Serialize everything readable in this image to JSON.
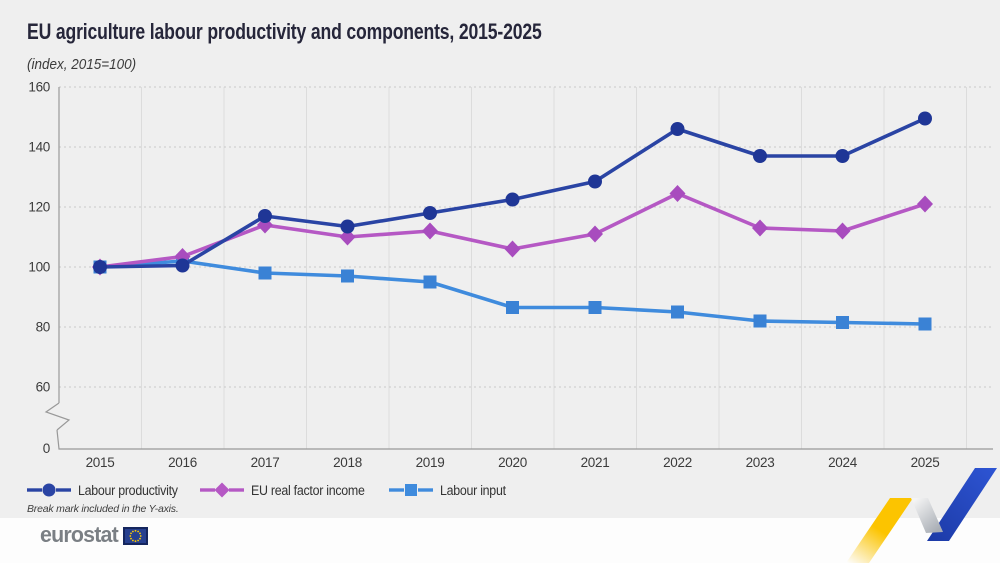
{
  "header": {
    "title": "EU agriculture labour productivity and components, 2015-2025",
    "subtitle": "(index, 2015=100)"
  },
  "chart_data": {
    "type": "line",
    "title": "EU agriculture labour productivity and components, 2015-2025",
    "subtitle": "(index, 2015=100)",
    "x": [
      "2015",
      "2016",
      "2017",
      "2018",
      "2019",
      "2020",
      "2021",
      "2022",
      "2023",
      "2024",
      "2025"
    ],
    "y_ticks": [
      160,
      140,
      120,
      100,
      80,
      60,
      0
    ],
    "y_axis_break": true,
    "grid": {
      "horizontal": "dashed",
      "vertical": "solid"
    },
    "legend_position": "bottom-left",
    "series": [
      {
        "name": "Labour productivity",
        "marker": "circle",
        "color": "#2a44a4",
        "marker_color": "#1f3696",
        "values": [
          100,
          100.5,
          117,
          113.5,
          118,
          122.5,
          128.5,
          146,
          137,
          137,
          149.5
        ]
      },
      {
        "name": "EU real factor income",
        "marker": "diamond",
        "color": "#b558c4",
        "marker_color": "#a84cbe",
        "values": [
          100,
          103.5,
          114,
          110,
          112,
          106,
          111,
          124.5,
          113,
          112,
          121
        ]
      },
      {
        "name": "Labour input",
        "marker": "square",
        "color": "#3f8bdd",
        "marker_color": "#3a82d5",
        "values": [
          100,
          102,
          98,
          97,
          95,
          86.5,
          86.5,
          85,
          82,
          81.5,
          81
        ]
      }
    ]
  },
  "note": "Break mark included in the Y-axis.",
  "footer": {
    "logo_text": "eurostat"
  },
  "colors": {
    "background": "#efefef",
    "footer_background": "#fdfdfd",
    "axis": "#999999",
    "gridline_dashed": "#c9c9c9",
    "gridline_vertical": "#dcdcdc",
    "title_text": "#26263a",
    "accent_yellow": "#fcc400",
    "accent_blue": "#2a4cc0",
    "eu_flag_blue": "#27408f",
    "eu_star_yellow": "#ffcc00"
  }
}
